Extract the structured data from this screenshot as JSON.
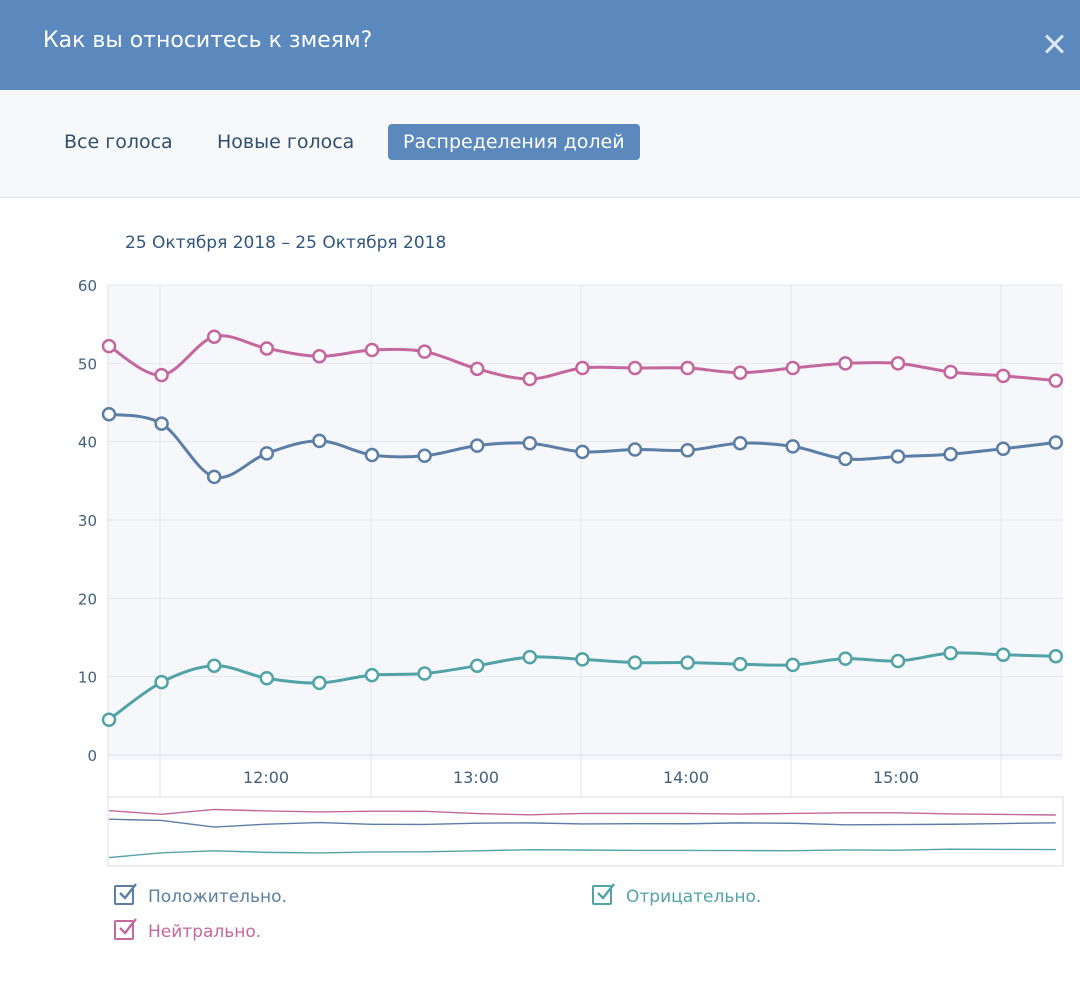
{
  "modal": {
    "title": "Как вы относитесь к змеям?"
  },
  "tabs": [
    {
      "label": "Все голоса",
      "active": false
    },
    {
      "label": "Новые голоса",
      "active": false
    },
    {
      "label": "Распределения долей",
      "active": true
    }
  ],
  "date_range": "25 Октября 2018 – 25 Октября 2018",
  "colors": {
    "header": "#5b88bd",
    "positive": "#5b7ea6",
    "neutral": "#c3679e",
    "negative": "#52a3a8"
  },
  "chart_data": {
    "type": "line",
    "ylim": [
      0,
      60
    ],
    "yticks": [
      "0",
      "10",
      "20",
      "30",
      "40",
      "50",
      "60"
    ],
    "x_tick_labels": [
      "12:00",
      "13:00",
      "14:00",
      "15:00"
    ],
    "grid": true,
    "legend_placement": "bottom",
    "series": [
      {
        "name": "Положительно.",
        "color": "#5b7ea6",
        "values": [
          43.5,
          42.3,
          35.5,
          38.5,
          40.1,
          38.3,
          38.2,
          39.5,
          39.8,
          38.7,
          39.0,
          38.9,
          39.8,
          39.4,
          37.8,
          38.1,
          38.4,
          39.1,
          39.9
        ]
      },
      {
        "name": "Нейтрально.",
        "color": "#c3679e",
        "values": [
          52.2,
          48.5,
          53.4,
          51.9,
          50.9,
          51.7,
          51.5,
          49.3,
          48.0,
          49.4,
          49.4,
          49.4,
          48.8,
          49.4,
          50.0,
          50.0,
          48.9,
          48.4,
          47.8
        ]
      },
      {
        "name": "Отрицательно.",
        "color": "#52a3a8",
        "values": [
          4.5,
          9.3,
          11.4,
          9.8,
          9.2,
          10.2,
          10.4,
          11.4,
          12.5,
          12.2,
          11.8,
          11.8,
          11.6,
          11.5,
          12.3,
          12.0,
          13.0,
          12.8,
          12.6
        ]
      }
    ]
  }
}
